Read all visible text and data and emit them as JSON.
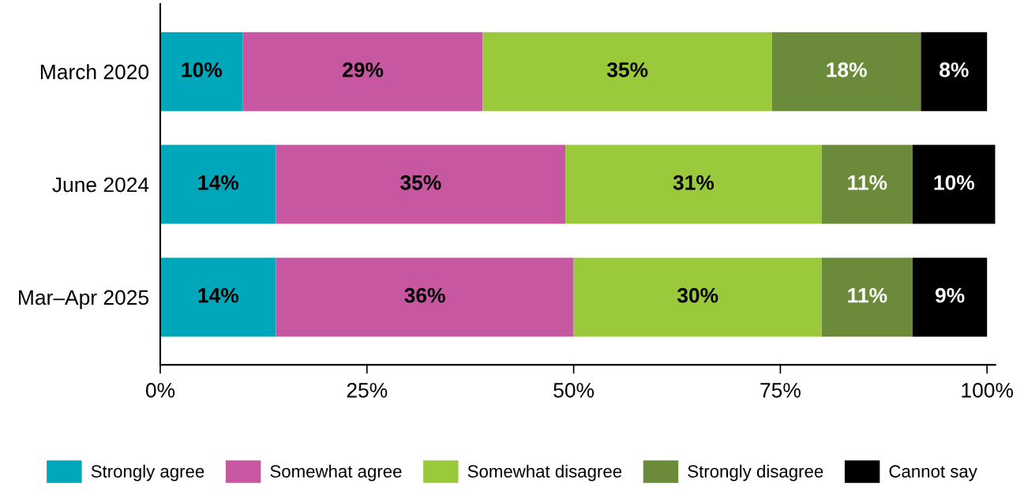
{
  "chart_data": {
    "type": "bar",
    "orientation": "horizontal",
    "stacked": true,
    "legend": "bottom",
    "grid": false,
    "categories": [
      "March 2020",
      "June 2024",
      "Mar–Apr 2025"
    ],
    "xlim": [
      0,
      101
    ],
    "xticks": [
      {
        "value": 0,
        "label": "0%"
      },
      {
        "value": 25,
        "label": "25%"
      },
      {
        "value": 50,
        "label": "50%"
      },
      {
        "value": 75,
        "label": "75%"
      },
      {
        "value": 100,
        "label": "100%"
      }
    ],
    "series": [
      {
        "name": "Strongly agree",
        "color": "#00a7bb",
        "values": [
          10,
          14,
          14
        ],
        "value_labels": [
          "10%",
          "14%",
          "14%"
        ]
      },
      {
        "name": "Somewhat agree",
        "color": "#c757a0",
        "values": [
          29,
          35,
          36
        ],
        "value_labels": [
          "29%",
          "35%",
          "36%"
        ]
      },
      {
        "name": "Somewhat disagree",
        "color": "#9bc93c",
        "values": [
          35,
          31,
          30
        ],
        "value_labels": [
          "35%",
          "31%",
          "30%"
        ]
      },
      {
        "name": "Strongly disagree",
        "color": "#6b8b3a",
        "values": [
          18,
          11,
          11
        ],
        "value_labels": [
          "18%",
          "11%",
          "11%"
        ]
      },
      {
        "name": "Cannot say",
        "color": "#000000",
        "values": [
          8,
          10,
          9
        ],
        "value_labels": [
          "8%",
          "10%",
          "9%"
        ]
      }
    ]
  }
}
